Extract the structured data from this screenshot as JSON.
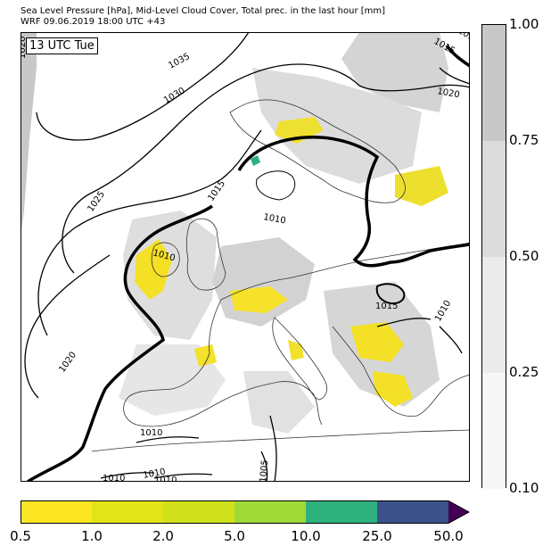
{
  "header": {
    "title_line1": "Sea Level Pressure [hPa], Mid-Level Cloud Cover, Total prec. in the last hour [mm]",
    "title_line2": "WRF 09.06.2019 18:00 UTC +43"
  },
  "map": {
    "time_label": "13 UTC Tue",
    "isobar_labels": [
      "1035",
      "1030",
      "1025",
      "1020",
      "1015",
      "1010",
      "1010",
      "1010",
      "1015",
      "1020",
      "1015",
      "1010",
      "1020",
      "1010",
      "1010",
      "1010",
      "1005",
      "1015"
    ],
    "colors": {
      "land_outline": "#333333",
      "isobar": "#000000",
      "cloud_light": "#e6e6e6",
      "cloud_mid": "#d0d0d0",
      "cloud_dark": "#b4b4b4",
      "precip_light": "#f9e02a",
      "precip_green": "#2db27d"
    }
  },
  "cloud_colorbar": {
    "labels": [
      "1.00",
      "0.75",
      "0.50",
      "0.25",
      "0.10"
    ],
    "levels": [
      1.0,
      0.75,
      0.5,
      0.25,
      0.1
    ],
    "colors": [
      "#c8c8c8",
      "#dcdcdc",
      "#ebebeb",
      "#f7f7f7"
    ]
  },
  "precip_colorbar": {
    "labels": [
      "0.5",
      "1.0",
      "2.0",
      "5.0",
      "10.0",
      "25.0",
      "50.0"
    ],
    "colors": [
      "#fde725",
      "#e3e418",
      "#d0e11c",
      "#a0da39",
      "#2db27d",
      "#3b528b",
      "#440154"
    ]
  }
}
